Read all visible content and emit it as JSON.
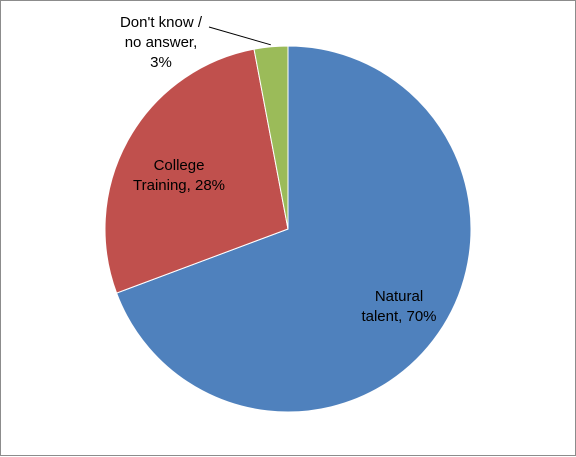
{
  "chart_data": {
    "type": "pie",
    "title": "",
    "legend": "none",
    "slices": [
      {
        "label_lines": [
          "Natural",
          "talent, 70%"
        ],
        "value": 70,
        "color": "#4F81BD"
      },
      {
        "label_lines": [
          "College",
          "Training, 28%"
        ],
        "value": 28,
        "color": "#C0504D"
      },
      {
        "label_lines": [
          "Don't know /",
          "no answer,",
          "3%"
        ],
        "value": 3,
        "color": "#9BBB59"
      }
    ]
  }
}
